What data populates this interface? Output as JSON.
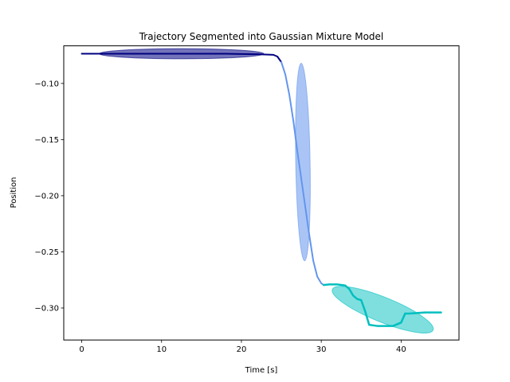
{
  "chart_data": {
    "type": "line",
    "title": "Trajectory Segmented into Gaussian Mixture Model",
    "xlabel": "Time [s]",
    "ylabel": "Position",
    "xlim": [
      -2.25,
      47.25
    ],
    "ylim": [
      -0.3285,
      -0.0665
    ],
    "xticks": [
      0,
      10,
      20,
      30,
      40
    ],
    "yticks": [
      -0.1,
      -0.15,
      -0.2,
      -0.25,
      -0.3
    ],
    "xtick_labels": [
      "0",
      "10",
      "20",
      "30",
      "40"
    ],
    "ytick_labels": [
      "−0.10",
      "−0.15",
      "−0.20",
      "−0.25",
      "−0.30"
    ],
    "grid": false,
    "ellipses": [
      {
        "component": 1,
        "color": "#000080",
        "opacity": 0.55,
        "cx": 12.5,
        "cy": -0.0735,
        "rx_data": 10.3,
        "ry_data": 0.0045,
        "angle_deg": 0
      },
      {
        "component": 2,
        "color": "#6495ED",
        "opacity": 0.55,
        "cx": 27.7,
        "cy": -0.17,
        "rx_data": 0.9,
        "ry_data": 0.088,
        "angle_deg": -1
      },
      {
        "component": 3,
        "color": "#00BFBF",
        "opacity": 0.5,
        "cx": 37.7,
        "cy": -0.3015,
        "rx_data": 6.8,
        "ry_data": 0.011,
        "angle_deg": 22
      }
    ],
    "series": [
      {
        "color": "#000080",
        "width": 2,
        "x": [
          0,
          5,
          10,
          15,
          18,
          20,
          22,
          23,
          24,
          24.5,
          25
        ],
        "y": [
          -0.0735,
          -0.0735,
          -0.0735,
          -0.0735,
          -0.0735,
          -0.0738,
          -0.074,
          -0.0742,
          -0.0745,
          -0.076,
          -0.081
        ]
      },
      {
        "color": "#6495ED",
        "width": 2,
        "x": [
          25,
          25.5,
          26,
          26.5,
          27,
          27.5,
          28,
          28.5,
          29,
          29.5,
          30,
          30.3
        ],
        "y": [
          -0.081,
          -0.092,
          -0.11,
          -0.133,
          -0.16,
          -0.185,
          -0.21,
          -0.235,
          -0.258,
          -0.272,
          -0.278,
          -0.2795
        ]
      },
      {
        "color": "#00BFBF",
        "width": 2.5,
        "x": [
          30.3,
          31,
          32,
          33,
          33.5,
          34,
          34.5,
          35,
          35.5,
          36,
          37,
          38,
          39,
          40,
          40.5,
          41,
          43,
          45
        ],
        "y": [
          -0.2795,
          -0.279,
          -0.279,
          -0.28,
          -0.283,
          -0.289,
          -0.292,
          -0.293,
          -0.303,
          -0.315,
          -0.316,
          -0.316,
          -0.316,
          -0.313,
          -0.305,
          -0.305,
          -0.304,
          -0.304
        ]
      }
    ]
  }
}
